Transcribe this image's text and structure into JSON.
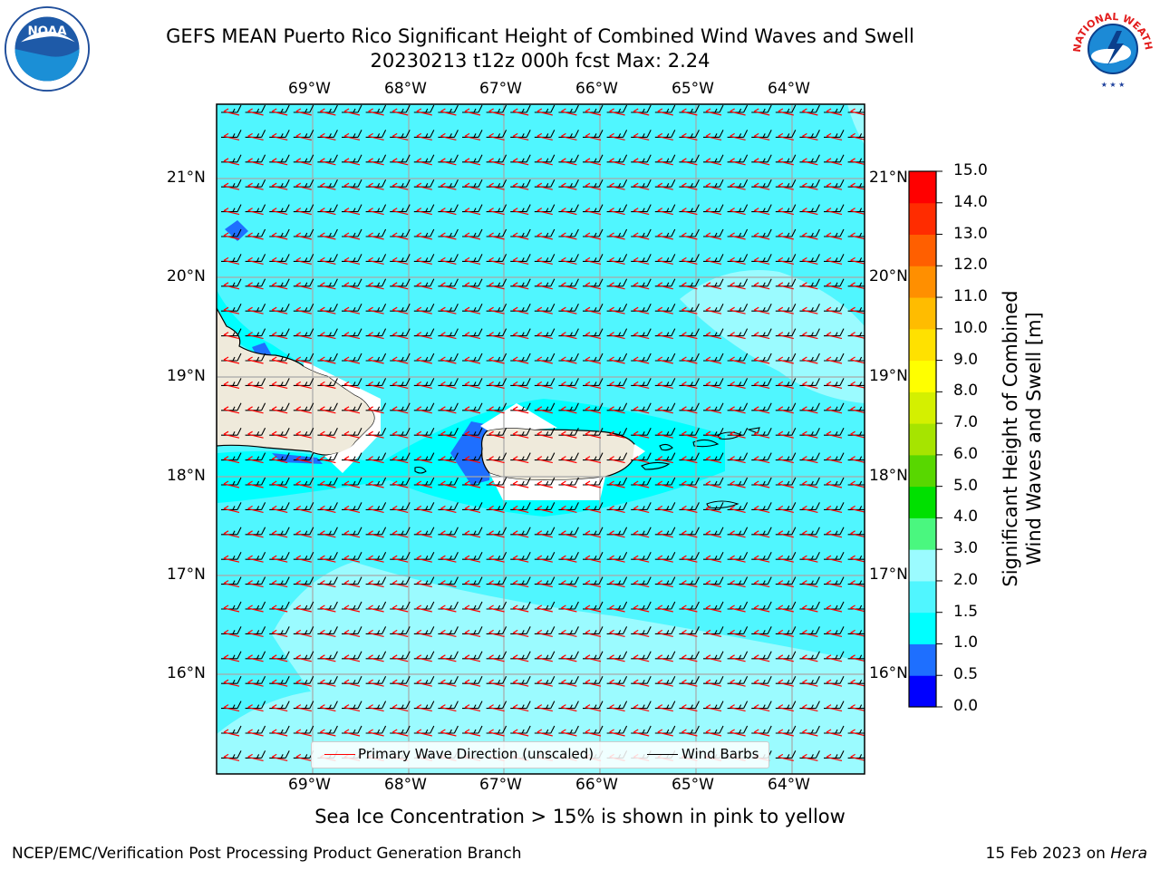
{
  "header": {
    "title_line1": "GEFS MEAN Puerto Rico Significant Height of Combined Wind Waves and Swell",
    "title_line2": "20230213 t12z 000h fcst   Max: 2.24"
  },
  "logos": {
    "left": "NOAA",
    "right_text": "NATIONAL WEATHER SERVICE"
  },
  "map": {
    "lon_labels": [
      "69°W",
      "68°W",
      "67°W",
      "66°W",
      "65°W",
      "64°W"
    ],
    "lat_labels": [
      "21°N",
      "20°N",
      "19°N",
      "18°N",
      "17°N",
      "16°N"
    ],
    "ocean_color": "#50f6ff",
    "land_color": "#efeadb",
    "barb_color": "#000000",
    "wave_arrow_color": "#ff0000"
  },
  "colorbar": {
    "label": "Significant Height of Combined\nWind Waves and Swell [m]",
    "tick_labels": [
      "0.0",
      "0.5",
      "1.0",
      "1.5",
      "2.0",
      "3.0",
      "4.0",
      "5.0",
      "6.0",
      "7.0",
      "8.0",
      "9.0",
      "10.0",
      "11.0",
      "12.0",
      "13.0",
      "14.0",
      "15.0"
    ],
    "colors": [
      "#0000ff",
      "#1e6fff",
      "#00ffff",
      "#50f6ff",
      "#9bfbff",
      "#4af77f",
      "#00e000",
      "#58d700",
      "#a6e400",
      "#d4f000",
      "#ffff00",
      "#ffe100",
      "#ffbc00",
      "#ff8f00",
      "#ff5f00",
      "#ff2c00",
      "#ff0000"
    ]
  },
  "legend": {
    "wave_label": "Primary Wave Direction (unscaled)",
    "barb_label": "Wind Barbs"
  },
  "footnote": "Sea Ice Concentration > 15% is shown in pink to yellow",
  "footer": {
    "left": "NCEP/EMC/Verification Post Processing Product Generation Branch",
    "date": "15 Feb 2023 on ",
    "host": "Hera"
  }
}
